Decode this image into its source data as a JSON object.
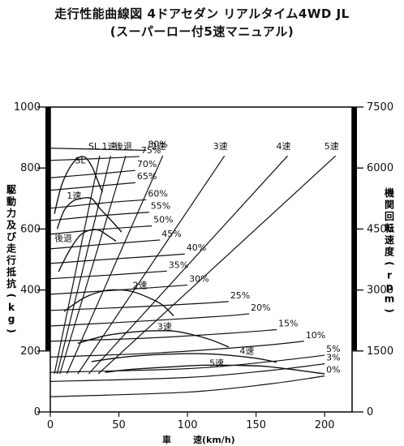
{
  "title": "走行性能曲線図 4ドアセダン リアルタイム4WD JL",
  "subtitle": "(スーパーロー付5速マニュアル)",
  "chart_data": {
    "type": "line",
    "xlabel": "車 速(km/h)",
    "ylabel_left": "駆動力及び走行抵抗(kg)",
    "ylabel_right": "機関回転速度(rpm)",
    "xlim": [
      0,
      220
    ],
    "ylim": [
      0,
      1000
    ],
    "ylim_right": [
      0,
      7500
    ],
    "x_ticks": [
      "0",
      "50",
      "100",
      "150",
      "200"
    ],
    "y_ticks": [
      "0",
      "200",
      "400",
      "600",
      "800",
      "1000"
    ],
    "y_ticks_right": [
      "0",
      "1500",
      "3000",
      "4500",
      "6000",
      "7500"
    ],
    "grid": false,
    "driving_force": [
      {
        "name": "SL",
        "label": "SL",
        "points": [
          [
            3,
            650
          ],
          [
            8,
            740
          ],
          [
            14,
            800
          ],
          [
            20,
            832
          ],
          [
            25,
            836
          ],
          [
            30,
            808
          ],
          [
            34,
            765
          ],
          [
            38,
            720
          ]
        ]
      },
      {
        "name": "1速",
        "label": "1速",
        "points": [
          [
            5,
            600
          ],
          [
            10,
            660
          ],
          [
            16,
            690
          ],
          [
            22,
            700
          ],
          [
            30,
            700
          ],
          [
            36,
            668
          ],
          [
            44,
            630
          ],
          [
            52,
            590
          ]
        ]
      },
      {
        "name": "後退",
        "label": "後退",
        "points": [
          [
            6,
            460
          ],
          [
            14,
            530
          ],
          [
            22,
            580
          ],
          [
            30,
            598
          ],
          [
            36,
            595
          ],
          [
            42,
            578
          ],
          [
            48,
            560
          ]
        ]
      },
      {
        "name": "2速",
        "label": "2速",
        "points": [
          [
            10,
            330
          ],
          [
            25,
            375
          ],
          [
            40,
            398
          ],
          [
            52,
            400
          ],
          [
            62,
            392
          ],
          [
            74,
            370
          ],
          [
            82,
            350
          ],
          [
            90,
            315
          ]
        ]
      },
      {
        "name": "3速",
        "label": "3速",
        "points": [
          [
            20,
            225
          ],
          [
            40,
            250
          ],
          [
            60,
            262
          ],
          [
            75,
            266
          ],
          [
            90,
            265
          ],
          [
            105,
            252
          ],
          [
            118,
            235
          ],
          [
            130,
            213
          ]
        ]
      },
      {
        "name": "4速",
        "label": "4速",
        "points": [
          [
            30,
            165
          ],
          [
            50,
            178
          ],
          [
            70,
            186
          ],
          [
            90,
            190
          ],
          [
            110,
            191
          ],
          [
            130,
            186
          ],
          [
            150,
            176
          ],
          [
            165,
            163
          ]
        ]
      },
      {
        "name": "5速",
        "label": "5速",
        "points": [
          [
            40,
            130
          ],
          [
            60,
            140
          ],
          [
            85,
            147
          ],
          [
            110,
            153
          ],
          [
            135,
            153
          ],
          [
            155,
            150
          ],
          [
            175,
            140
          ],
          [
            200,
            125
          ]
        ]
      }
    ],
    "engine_speed": [
      {
        "name": "SL",
        "label": "SL 1速",
        "points": [
          [
            3,
            125
          ],
          [
            36,
            840
          ]
        ]
      },
      {
        "name": "1速",
        "label": "",
        "points": [
          [
            5,
            125
          ],
          [
            44,
            840
          ]
        ]
      },
      {
        "name": "後退",
        "label": "後退",
        "points": [
          [
            7,
            125
          ],
          [
            55,
            840
          ]
        ]
      },
      {
        "name": "2速",
        "label": "2速",
        "points": [
          [
            12,
            125
          ],
          [
            82,
            840
          ]
        ]
      },
      {
        "name": "3速",
        "label": "3速",
        "points": [
          [
            20,
            125
          ],
          [
            127,
            840
          ]
        ]
      },
      {
        "name": "4速",
        "label": "4速",
        "points": [
          [
            28,
            125
          ],
          [
            173,
            840
          ]
        ]
      },
      {
        "name": "5速",
        "label": "5速",
        "points": [
          [
            35,
            125
          ],
          [
            208,
            840
          ]
        ]
      }
    ],
    "resistance": [
      {
        "name": "80%",
        "label": "80%",
        "points": [
          [
            0,
            865
          ],
          [
            50,
            860
          ],
          [
            70,
            858
          ]
        ]
      },
      {
        "name": "75%",
        "label": "75%",
        "points": [
          [
            0,
            825
          ],
          [
            40,
            832
          ],
          [
            65,
            838
          ]
        ]
      },
      {
        "name": "70%",
        "label": "70%",
        "points": [
          [
            0,
            768
          ],
          [
            40,
            783
          ],
          [
            62,
            792
          ]
        ]
      },
      {
        "name": "65%",
        "label": "65%",
        "points": [
          [
            0,
            727
          ],
          [
            40,
            743
          ],
          [
            62,
            752
          ]
        ]
      },
      {
        "name": "60%",
        "label": "60%",
        "points": [
          [
            0,
            668
          ],
          [
            40,
            686
          ],
          [
            70,
            696
          ]
        ]
      },
      {
        "name": "55%",
        "label": "55%",
        "points": [
          [
            0,
            628
          ],
          [
            40,
            645
          ],
          [
            72,
            655
          ]
        ]
      },
      {
        "name": "50%",
        "label": "50%",
        "points": [
          [
            0,
            583
          ],
          [
            40,
            600
          ],
          [
            74,
            610
          ]
        ]
      },
      {
        "name": "45%",
        "label": "45%",
        "points": [
          [
            0,
            535
          ],
          [
            40,
            550
          ],
          [
            80,
            564
          ]
        ]
      },
      {
        "name": "40%",
        "label": "40%",
        "points": [
          [
            0,
            487
          ],
          [
            40,
            500
          ],
          [
            80,
            512
          ],
          [
            98,
            518
          ]
        ]
      },
      {
        "name": "35%",
        "label": "35%",
        "points": [
          [
            0,
            437
          ],
          [
            40,
            448
          ],
          [
            85,
            462
          ]
        ]
      },
      {
        "name": "30%",
        "label": "30%",
        "points": [
          [
            0,
            386
          ],
          [
            50,
            400
          ],
          [
            100,
            416
          ]
        ]
      },
      {
        "name": "25%",
        "label": "25%",
        "points": [
          [
            0,
            333
          ],
          [
            60,
            344
          ],
          [
            110,
            356
          ],
          [
            130,
            362
          ]
        ]
      },
      {
        "name": "20%",
        "label": "20%",
        "points": [
          [
            0,
            282
          ],
          [
            60,
            296
          ],
          [
            125,
            314
          ],
          [
            145,
            322
          ]
        ]
      },
      {
        "name": "15%",
        "label": "15%",
        "points": [
          [
            0,
            232
          ],
          [
            70,
            242
          ],
          [
            130,
            258
          ],
          [
            165,
            270
          ]
        ]
      },
      {
        "name": "10%",
        "label": "10%",
        "points": [
          [
            0,
            180
          ],
          [
            80,
            194
          ],
          [
            150,
            216
          ],
          [
            185,
            232
          ]
        ]
      },
      {
        "name": "5%",
        "label": "5%",
        "points": [
          [
            0,
            130
          ],
          [
            100,
            142
          ],
          [
            160,
            165
          ],
          [
            200,
            186
          ]
        ]
      },
      {
        "name": "3%",
        "label": "3%",
        "points": [
          [
            0,
            100
          ],
          [
            100,
            113
          ],
          [
            160,
            136
          ],
          [
            200,
            158
          ]
        ]
      },
      {
        "name": "0%",
        "label": "0%",
        "points": [
          [
            0,
            50
          ],
          [
            100,
            65
          ],
          [
            160,
            92
          ],
          [
            200,
            118
          ]
        ]
      }
    ]
  }
}
